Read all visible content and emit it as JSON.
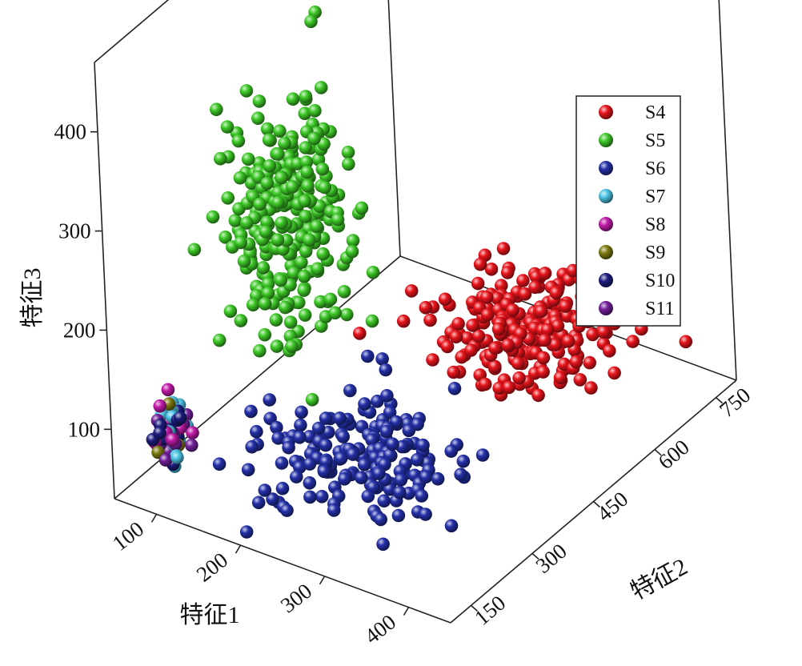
{
  "chart_data": {
    "type": "scatter3d",
    "axes": {
      "x": {
        "label": "特征1",
        "range": [
          50,
          450
        ],
        "ticks": [
          "100",
          "200",
          "300",
          "400"
        ]
      },
      "y": {
        "label": "特征2",
        "range": [
          100,
          800
        ],
        "ticks": [
          "150",
          "300",
          "450",
          "600",
          "750"
        ]
      },
      "z": {
        "label": "特征3",
        "range": [
          30,
          470
        ],
        "ticks": [
          "100",
          "200",
          "300",
          "400"
        ]
      }
    },
    "legend_position": "top-right",
    "series": [
      {
        "name": "S4",
        "color": "#e8141c",
        "center": [
          290,
          620,
          95
        ],
        "spread": [
          45,
          60,
          18
        ],
        "count": 230
      },
      {
        "name": "S5",
        "color": "#3ec928",
        "center": [
          155,
          330,
          270
        ],
        "spread": [
          30,
          45,
          55
        ],
        "count": 260
      },
      {
        "name": "S6",
        "color": "#2430a8",
        "center": [
          235,
          310,
          55
        ],
        "spread": [
          55,
          70,
          10
        ],
        "count": 180
      },
      {
        "name": "S7",
        "color": "#4cc4e4",
        "center": [
          72,
          200,
          70
        ],
        "spread": [
          6,
          14,
          12
        ],
        "count": 22
      },
      {
        "name": "S8",
        "color": "#c01aa8",
        "center": [
          72,
          200,
          70
        ],
        "spread": [
          6,
          14,
          12
        ],
        "count": 16
      },
      {
        "name": "S9",
        "color": "#7d7a10",
        "center": [
          72,
          200,
          70
        ],
        "spread": [
          6,
          14,
          12
        ],
        "count": 14
      },
      {
        "name": "S10",
        "color": "#1c1c7e",
        "center": [
          72,
          200,
          70
        ],
        "spread": [
          6,
          14,
          12
        ],
        "count": 18
      },
      {
        "name": "S11",
        "color": "#72209a",
        "center": [
          72,
          200,
          70
        ],
        "spread": [
          6,
          14,
          12
        ],
        "count": 20
      }
    ]
  }
}
